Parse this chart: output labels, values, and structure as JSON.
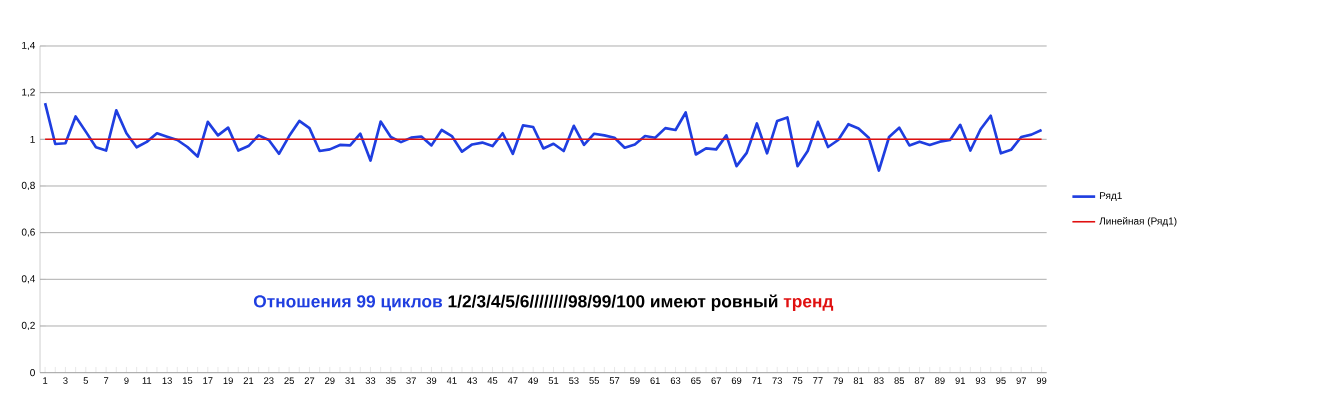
{
  "chart_data": {
    "type": "line",
    "categories": [
      "1",
      null,
      "3",
      null,
      "5",
      null,
      "7",
      null,
      "9",
      null,
      "11",
      null,
      "13",
      null,
      "15",
      null,
      "17",
      null,
      "19",
      null,
      "21",
      null,
      "23",
      null,
      "25",
      null,
      "27",
      null,
      "29",
      null,
      "31",
      null,
      "33",
      null,
      "35",
      null,
      "37",
      null,
      "39",
      null,
      "41",
      null,
      "43",
      null,
      "45",
      null,
      "47",
      null,
      "49",
      null,
      "51",
      null,
      "53",
      null,
      "55",
      null,
      "57",
      null,
      "59",
      null,
      "61",
      null,
      "63",
      null,
      "65",
      null,
      "67",
      null,
      "69",
      null,
      "71",
      null,
      "73",
      null,
      "75",
      null,
      "77",
      null,
      "79",
      null,
      "81",
      null,
      "83",
      null,
      "85",
      null,
      "87",
      null,
      "89",
      null,
      "91",
      null,
      "93",
      null,
      "95",
      null,
      "97",
      null,
      "99"
    ],
    "series": [
      {
        "name": "Ряд1",
        "color": "#1f3ee0",
        "values": [
          1.155,
          0.98,
          0.983,
          1.098,
          1.033,
          0.966,
          0.952,
          1.124,
          1.026,
          0.966,
          0.989,
          1.026,
          1.011,
          0.997,
          0.967,
          0.926,
          1.075,
          1.017,
          1.05,
          0.952,
          0.971,
          1.017,
          0.997,
          0.938,
          1.014,
          1.079,
          1.048,
          0.95,
          0.957,
          0.976,
          0.974,
          1.024,
          0.909,
          1.076,
          1.01,
          0.988,
          1.007,
          1.012,
          0.974,
          1.04,
          1.014,
          0.947,
          0.978,
          0.986,
          0.971,
          1.026,
          0.938,
          1.06,
          1.053,
          0.961,
          0.981,
          0.95,
          1.058,
          0.976,
          1.024,
          1.017,
          1.007,
          0.964,
          0.978,
          1.014,
          1.007,
          1.048,
          1.04,
          1.115,
          0.935,
          0.961,
          0.957,
          1.017,
          0.885,
          0.942,
          1.068,
          0.94,
          1.079,
          1.094,
          0.885,
          0.95,
          1.075,
          0.967,
          0.997,
          1.065,
          1.046,
          1.007,
          0.866,
          1.01,
          1.05,
          0.974,
          0.99,
          0.976,
          0.99,
          0.997,
          1.062,
          0.952,
          1.043,
          1.101,
          0.94,
          0.955,
          1.01,
          1.02,
          1.04
        ]
      },
      {
        "name": "Линейная (Ряд1)",
        "color": "#e01010",
        "values": [
          1.0,
          1.0,
          1.0,
          1.0,
          1.0,
          1.0,
          1.0,
          1.0,
          1.0,
          1.0,
          1.0,
          1.0,
          1.0,
          1.0,
          1.0,
          1.0,
          1.0,
          1.0,
          1.0,
          1.0,
          1.0,
          1.0,
          1.0,
          1.0,
          1.0,
          1.0,
          1.0,
          1.0,
          1.0,
          1.0,
          1.0,
          1.0,
          1.0,
          1.0,
          1.0,
          1.0,
          1.0,
          1.0,
          1.0,
          1.0,
          1.0,
          1.0,
          1.0,
          1.0,
          1.0,
          1.0,
          1.0,
          1.0,
          1.0,
          1.0,
          1.0,
          1.0,
          1.0,
          1.0,
          1.0,
          1.0,
          1.0,
          1.0,
          1.0,
          1.0,
          1.0,
          1.0,
          1.0,
          1.0,
          1.0,
          1.0,
          1.0,
          1.0,
          1.0,
          1.0,
          1.0,
          1.0,
          1.0,
          1.0,
          1.0,
          1.0,
          1.0,
          1.0,
          1.0,
          1.0,
          1.0,
          1.0,
          1.0,
          1.0,
          1.0,
          1.0,
          1.0,
          1.0,
          1.0,
          1.0,
          1.0,
          1.0,
          1.0,
          1.0,
          1.0,
          1.0,
          1.0,
          1.0,
          1.0
        ]
      }
    ],
    "ylim": [
      0,
      1.4
    ],
    "yticks": [
      0,
      {
        "value": 0.2,
        "label": "0,2"
      },
      {
        "value": 0.4,
        "label": "0,4"
      },
      {
        "value": 0.6,
        "label": "0,6"
      },
      {
        "value": 0.8,
        "label": "0,8"
      },
      1,
      {
        "value": 1.2,
        "label": "1,2"
      },
      {
        "value": 1.4,
        "label": "1,4"
      }
    ],
    "annotations": [
      "Отношения 99 циклов",
      "1/2/3/4/5/6////////98/99/100 имеют ровный",
      "тренд"
    ],
    "grid": "y",
    "legend": "right",
    "marker": "none",
    "line_style": "solid"
  }
}
